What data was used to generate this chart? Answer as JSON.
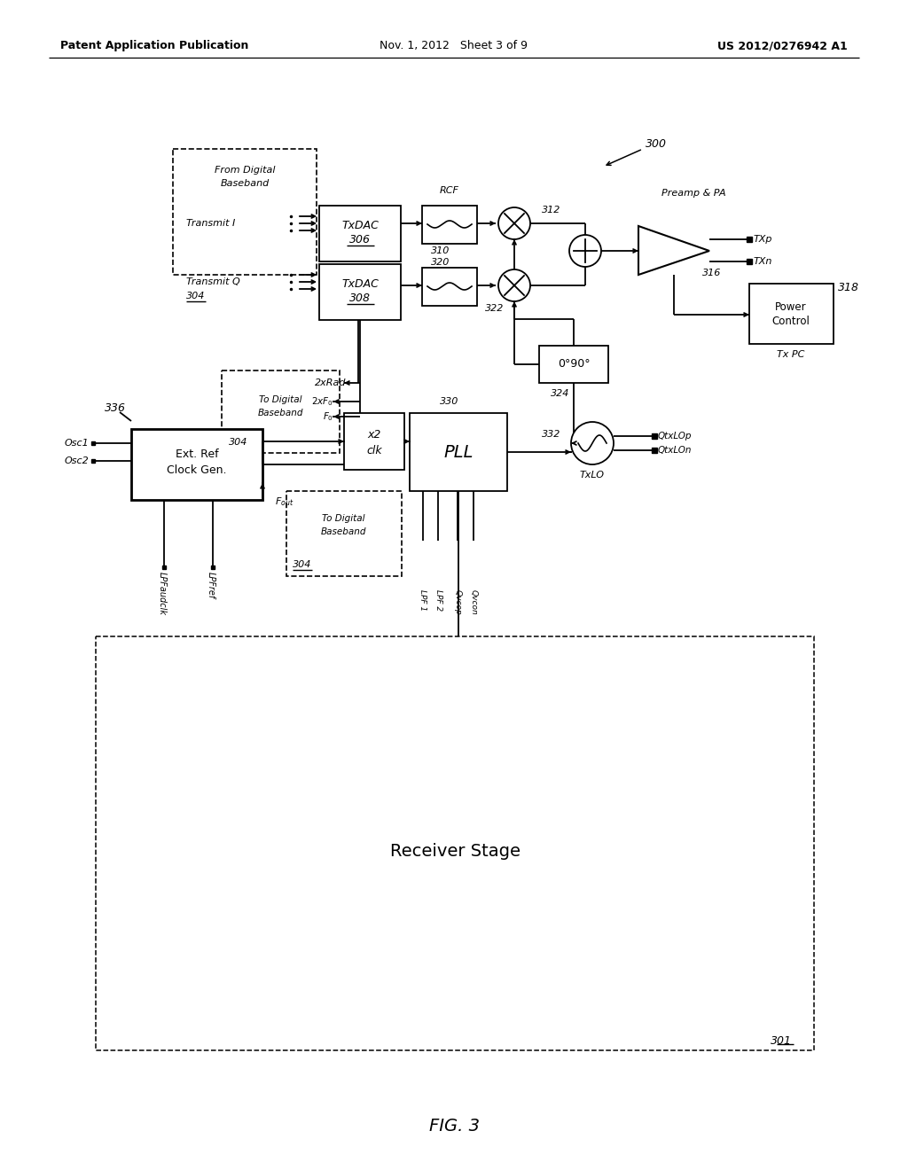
{
  "bg_color": "#ffffff",
  "lc": "#000000",
  "header_left": "Patent Application Publication",
  "header_center": "Nov. 1, 2012   Sheet 3 of 9",
  "header_right": "US 2012/0276942 A1",
  "fig_label": "FIG. 3"
}
